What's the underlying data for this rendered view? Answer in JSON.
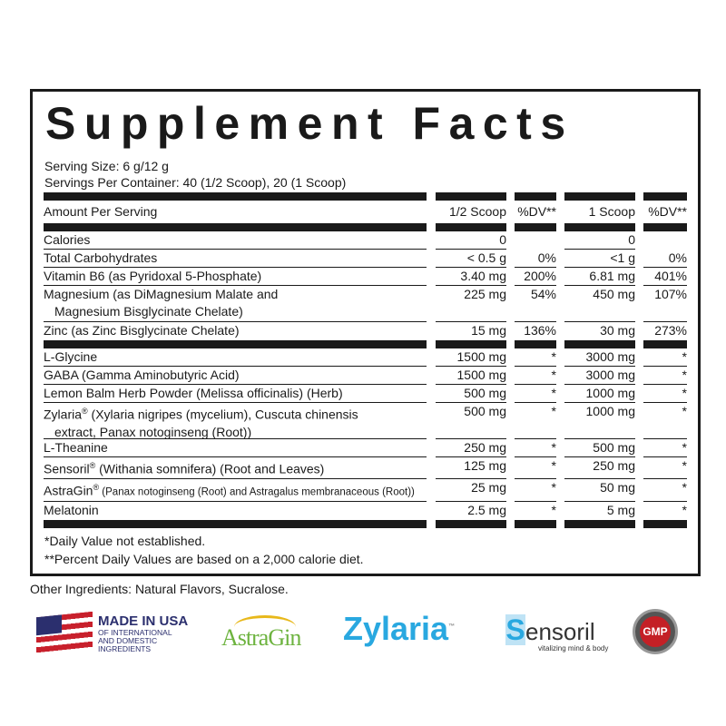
{
  "title": "Supplement Facts",
  "serving_size": "Serving Size: 6 g/12 g",
  "servings_per_container": "Servings Per Container: 40 (1/2 Scoop), 20 (1 Scoop)",
  "header": {
    "label": "Amount Per Serving",
    "cols": [
      "1/2 Scoop",
      "%DV**",
      "1 Scoop",
      "%DV**"
    ]
  },
  "rows": [
    {
      "label": "Calories",
      "values": [
        "0",
        "",
        "0",
        ""
      ]
    },
    {
      "label": "Total Carbohydrates",
      "values": [
        "< 0.5 g",
        "0%",
        "<1 g",
        "0%"
      ]
    },
    {
      "label": "Vitamin B6 (as Pyridoxal 5-Phosphate)",
      "values": [
        "3.40 mg",
        "200%",
        "6.81 mg",
        "401%"
      ]
    },
    {
      "label": "Magnesium (as DiMagnesium Malate and",
      "label2": "Magnesium Bisglycinate Chelate)",
      "values": [
        "225 mg",
        "54%",
        "450 mg",
        "107%"
      ]
    },
    {
      "label": "Zinc (as Zinc Bisglycinate Chelate)",
      "values": [
        "15 mg",
        "136%",
        "30 mg",
        "273%"
      ],
      "thick_after": true
    },
    {
      "label": "L-Glycine",
      "values": [
        "1500 mg",
        "*",
        "3000 mg",
        "*"
      ]
    },
    {
      "label": "GABA (Gamma Aminobutyric Acid)",
      "values": [
        "1500 mg",
        "*",
        "3000 mg",
        "*"
      ]
    },
    {
      "label": "Lemon Balm Herb Powder (Melissa officinalis) (Herb)",
      "values": [
        "500 mg",
        "*",
        "1000 mg",
        "*"
      ]
    },
    {
      "label": "Zylaria",
      "sup": "®",
      "rest": " (Xylaria nigripes (mycelium), Cuscuta chinensis",
      "label2": "extract, Panax notoginseng (Root))",
      "values": [
        "500 mg",
        "*",
        "1000 mg",
        "*"
      ]
    },
    {
      "label": "L-Theanine",
      "values": [
        "250 mg",
        "*",
        "500 mg",
        "*"
      ]
    },
    {
      "label": "Sensoril",
      "sup": "®",
      "rest": " (Withania somnifera) (Root and Leaves)",
      "values": [
        "125 mg",
        "*",
        "250 mg",
        "*"
      ]
    },
    {
      "label": "AstraGin",
      "sup": "®",
      "small": " (Panax notoginseng (Root) and Astragalus membranaceous (Root))",
      "values": [
        "25 mg",
        "*",
        "50 mg",
        "*"
      ]
    },
    {
      "label": "Melatonin",
      "values": [
        "2.5 mg",
        "*",
        "5 mg",
        "*"
      ],
      "thick_after": true
    }
  ],
  "footnotes": [
    "*Daily Value not established.",
    "**Percent Daily Values are based on a 2,000 calorie diet."
  ],
  "other_ingredients": "Other Ingredients: Natural Flavors, Sucralose.",
  "logos": {
    "usa": {
      "title": "MADE IN USA",
      "sub1": "OF INTERNATIONAL",
      "sub2": "AND DOMESTIC",
      "sub3": "INGREDIENTS"
    },
    "astragin": "AstraGin",
    "zylaria": "Zylaria",
    "zylaria_tm": "™",
    "sensoril": "ensoril",
    "sensoril_s": "S",
    "sensoril_tag": "vitalizing mind & body",
    "gmp": "GMP"
  },
  "colors": {
    "ink": "#1a1a1a",
    "usa_blue": "#2b2f6e",
    "flag_red": "#c8202c",
    "astragin_green": "#6db33f",
    "astragin_gold": "#e8b81a",
    "zylaria_blue": "#29a8e0",
    "gmp_red": "#c42026"
  }
}
